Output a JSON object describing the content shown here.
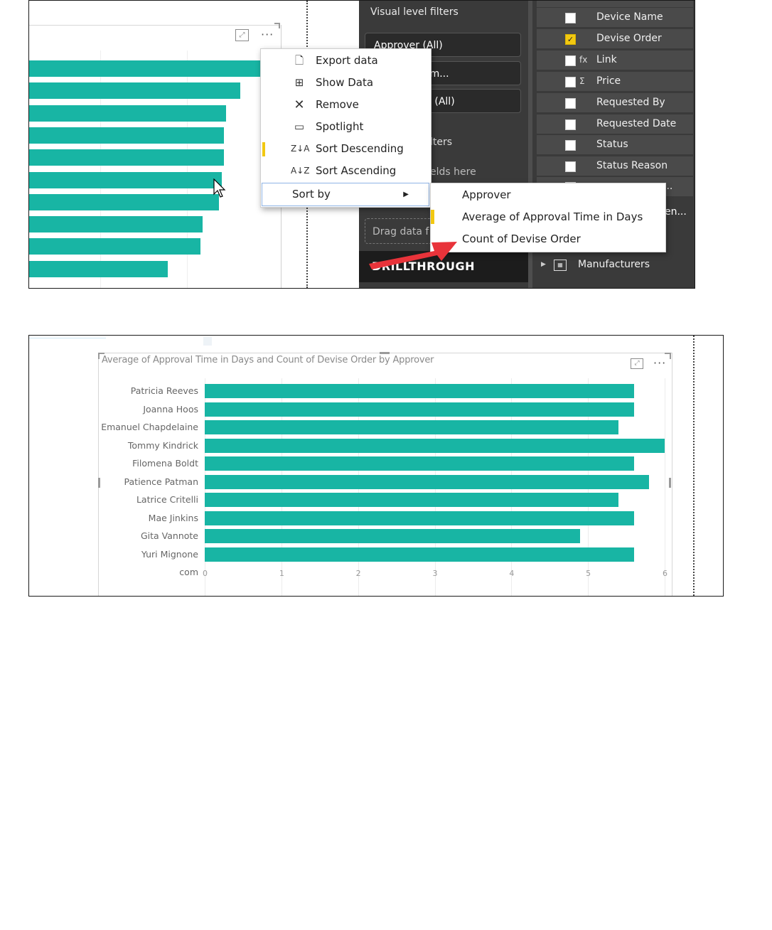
{
  "shot1": {
    "filters": {
      "title": "Visual level filters",
      "cards": [
        "Approver (All)",
        "Approval Tim...",
        "evise Order (All)"
      ],
      "subheading": "lters",
      "drop_hint": "elds here",
      "drag_hint": "Drag data f",
      "drillthrough": "DRILLTHROUGH"
    },
    "fields": {
      "items": [
        {
          "label": "Device Name",
          "checked": false,
          "type_icon": ""
        },
        {
          "label": "Devise Order",
          "checked": true,
          "type_icon": ""
        },
        {
          "label": "Link",
          "checked": false,
          "type_icon": "fx"
        },
        {
          "label": "Price",
          "checked": false,
          "type_icon": "Σ"
        },
        {
          "label": "Requested By",
          "checked": false,
          "type_icon": ""
        },
        {
          "label": "Requested Date",
          "checked": false,
          "type_icon": ""
        },
        {
          "label": "Status",
          "checked": false,
          "type_icon": ""
        },
        {
          "label": "Status Reason",
          "checked": false,
          "type_icon": ""
        }
      ],
      "truncated_tail": "...",
      "truncated_en": "en...",
      "table_name": "Manufacturers"
    },
    "context_menu": {
      "items": [
        {
          "label": "Export data",
          "icon": "export-icon"
        },
        {
          "label": "Show Data",
          "icon": "show-data-icon"
        },
        {
          "label": "Remove",
          "icon": "remove-icon"
        },
        {
          "label": "Spotlight",
          "icon": "spotlight-icon"
        },
        {
          "label": "Sort Descending",
          "icon": "sort-descending-icon"
        },
        {
          "label": "Sort Ascending",
          "icon": "sort-ascending-icon"
        }
      ],
      "sort_by": "Sort by"
    },
    "submenu": {
      "items": [
        "Approver",
        "Average of Approval Time in Days",
        "Count of Devise Order"
      ]
    },
    "bar_fractions": [
      1.0,
      0.9,
      0.84,
      0.83,
      0.83,
      0.82,
      0.81,
      0.74,
      0.73,
      0.59
    ]
  },
  "shot2": {
    "chart_data": {
      "type": "bar",
      "orientation": "horizontal",
      "title": "Average of Approval Time in Days and Count of Devise Order by Approver",
      "categories": [
        "Patricia Reeves",
        "Joanna Hoos",
        "Emanuel Chapdelaine",
        "Tommy Kindrick",
        "Filomena Boldt",
        "Patience Patman",
        "Latrice Critelli",
        "Mae Jinkins",
        "Gita Vannote",
        "Yuri Mignone",
        "com"
      ],
      "values": [
        5.6,
        5.6,
        5.4,
        6.0,
        5.6,
        5.8,
        5.4,
        5.6,
        4.9,
        5.6,
        0
      ],
      "xticks": [
        "0",
        "1",
        "2",
        "3",
        "4",
        "5",
        "6"
      ],
      "xlim": [
        0,
        6
      ],
      "grid": true,
      "bar_color": "#18b5a4"
    }
  },
  "colors": {
    "accent": "#18b5a4",
    "highlight": "#f2c811",
    "arrow": "#e8333a"
  }
}
